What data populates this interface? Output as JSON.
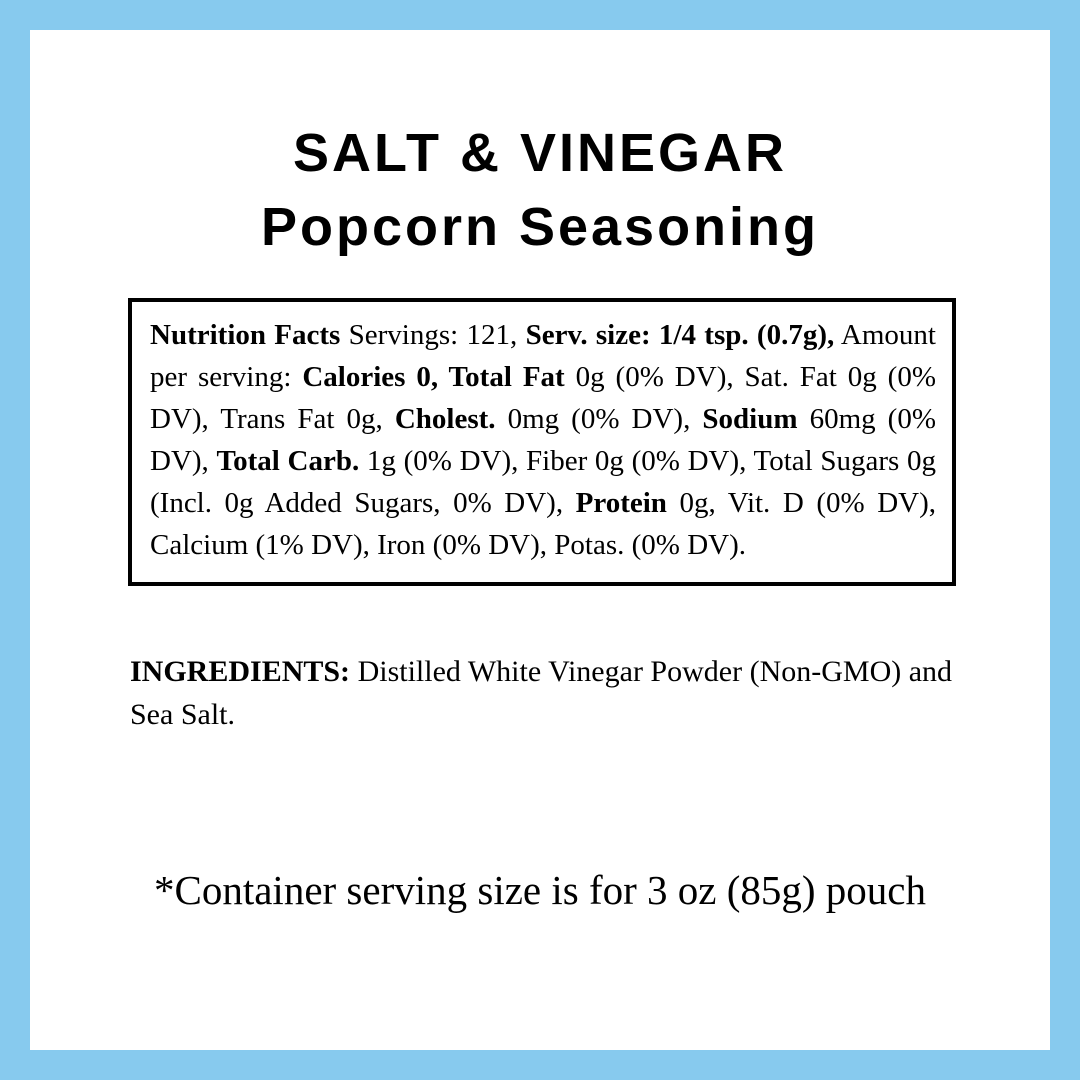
{
  "label": {
    "colors": {
      "frame": "#87CAEE",
      "background": "#FFFFFF",
      "text": "#000000",
      "box_border": "#000000"
    },
    "title_line1": "SALT & VINEGAR",
    "title_line2": "Popcorn Seasoning",
    "nutrition": {
      "segments": [
        {
          "text": "Nutrition Facts",
          "bold": true
        },
        {
          "text": " Servings: 121, ",
          "bold": false
        },
        {
          "text": "Serv. size: 1/4 tsp. (0.7g),",
          "bold": true
        },
        {
          "text": " Amount per serving: ",
          "bold": false
        },
        {
          "text": "Calories 0, Total Fat",
          "bold": true
        },
        {
          "text": " 0g (0% DV), Sat. Fat 0g (0% DV), Trans Fat 0g, ",
          "bold": false
        },
        {
          "text": "Cholest.",
          "bold": true
        },
        {
          "text": " 0mg (0% DV), ",
          "bold": false
        },
        {
          "text": "Sodium",
          "bold": true
        },
        {
          "text": " 60mg (0% DV), ",
          "bold": false
        },
        {
          "text": "Total Carb.",
          "bold": true
        },
        {
          "text": " 1g (0% DV), Fiber 0g (0% DV), Total Sugars 0g (Incl. 0g Added Sugars, 0% DV), ",
          "bold": false
        },
        {
          "text": "Protein",
          "bold": true
        },
        {
          "text": " 0g, Vit. D (0% DV), Calcium (1% DV), Iron (0% DV), Potas. (0% DV).",
          "bold": false
        }
      ],
      "facts": {
        "servings": "121",
        "serving_size": "1/4 tsp. (0.7g)",
        "calories": "0",
        "total_fat": "0g (0% DV)",
        "sat_fat": "0g (0% DV)",
        "trans_fat": "0g",
        "cholesterol": "0mg (0% DV)",
        "sodium": "60mg (0% DV)",
        "total_carb": "1g (0% DV)",
        "fiber": "0g (0% DV)",
        "total_sugars": "0g (Incl. 0g Added Sugars, 0% DV)",
        "protein": "0g",
        "vitamin_d": "0% DV",
        "calcium": "1% DV",
        "iron": "0% DV",
        "potassium": "0% DV"
      }
    },
    "ingredients": {
      "segments": [
        {
          "text": "INGREDIENTS:",
          "bold": true
        },
        {
          "text": " Distilled White Vinegar Powder (Non-GMO) and Sea Salt.",
          "bold": false
        }
      ]
    },
    "footnote": "*Container serving size is for 3 oz (85g) pouch"
  }
}
